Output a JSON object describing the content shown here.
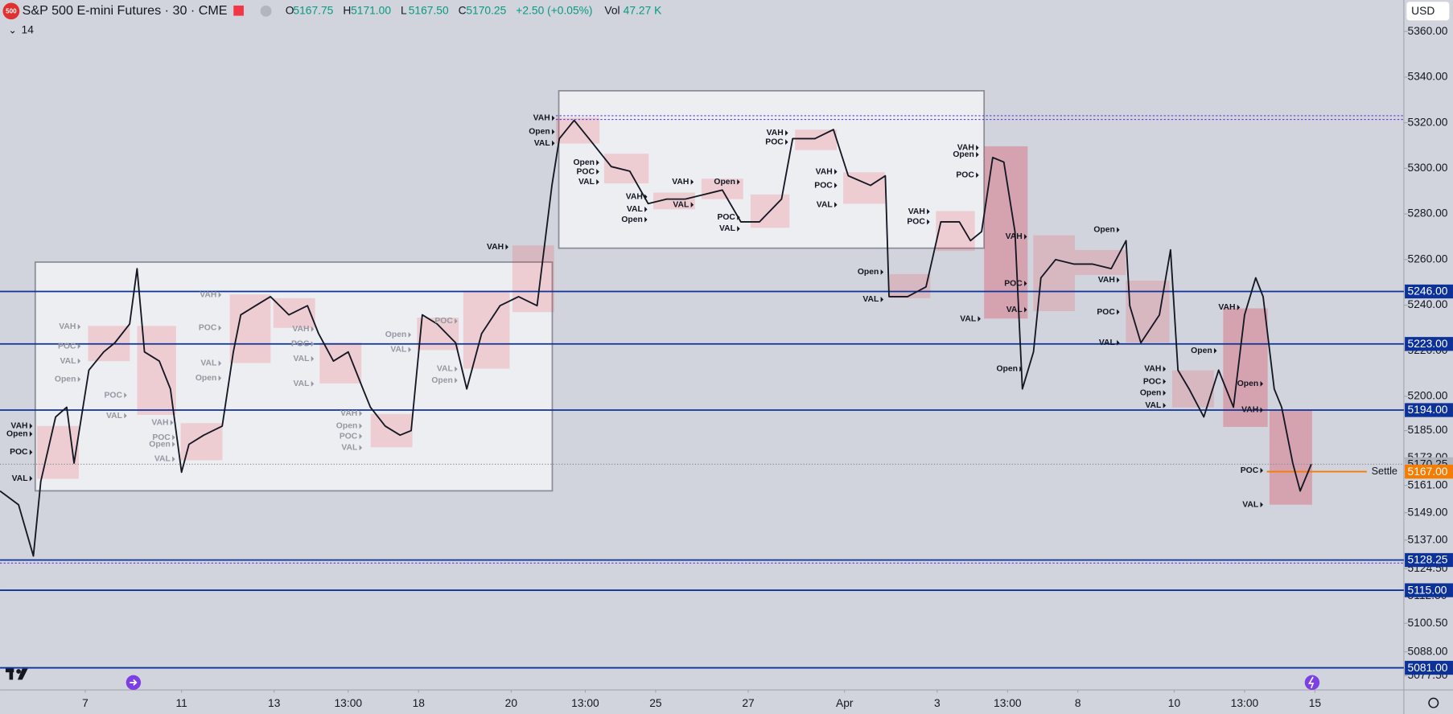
{
  "header": {
    "badge": "500",
    "symbol": "S&P 500 E-mini Futures · 30 · CME",
    "ohlc": [
      {
        "key": "O",
        "value": "5167.75"
      },
      {
        "key": "H",
        "value": "5171.00"
      },
      {
        "key": "L",
        "value": "5167.50"
      },
      {
        "key": "C",
        "value": "5170.25"
      }
    ],
    "change": "+2.50 (+0.05%)",
    "volume": {
      "key": "Vol",
      "value": "47.27 K"
    },
    "indicator": "14",
    "currency": "USD"
  },
  "chart_data": {
    "type": "line",
    "x": [
      0,
      5,
      9,
      11,
      15,
      18,
      20,
      24,
      28,
      31,
      35,
      37,
      39,
      43,
      46,
      49,
      51,
      55,
      60,
      63,
      65,
      69,
      73,
      78,
      83,
      86,
      90,
      94,
      98,
      100,
      104,
      108,
      111,
      114,
      118,
      123,
      126,
      130,
      135,
      140,
      145,
      149,
      151,
      155,
      159,
      165,
      170,
      175,
      180,
      185,
      190,
      195,
      200,
      205,
      211,
      214,
      220,
      225,
      229,
      235,
      239,
      240,
      245,
      250,
      254,
      259,
      262,
      265,
      268,
      271,
      274,
      276,
      279,
      281,
      285,
      290,
      295,
      300,
      304,
      305,
      308,
      313,
      316,
      318,
      321,
      325,
      329,
      333,
      336,
      339,
      341,
      344,
      346,
      349,
      351,
      354
    ],
    "series": [
      {
        "color": "#131722",
        "values": [
          5158.5,
          5152.5,
          5130,
          5162.75,
          5191,
          5195.25,
          5170.75,
          5211.5,
          5219.5,
          5223.5,
          5231.75,
          5256,
          5219.5,
          5215.5,
          5203.25,
          5166.75,
          5179,
          5183,
          5187,
          5219.5,
          5235.75,
          5239.75,
          5243.75,
          5235.75,
          5239.75,
          5227.5,
          5215.5,
          5219.5,
          5203.25,
          5195.25,
          5187,
          5183,
          5185,
          5235.75,
          5231.75,
          5223.5,
          5203.25,
          5227.5,
          5239.75,
          5243.75,
          5239.75,
          5292.5,
          5313,
          5321,
          5313,
          5300.75,
          5298.75,
          5284.5,
          5286.5,
          5286.5,
          5288.5,
          5290.5,
          5276.5,
          5276.5,
          5286.5,
          5313,
          5313,
          5317,
          5296.75,
          5292.5,
          5296.75,
          5243.75,
          5243.75,
          5248,
          5276.5,
          5276.5,
          5268.25,
          5272.25,
          5304.75,
          5302.75,
          5272.25,
          5203.25,
          5219.5,
          5252,
          5260,
          5258,
          5258,
          5256,
          5268.25,
          5239.75,
          5223.5,
          5235.75,
          5264.25,
          5211.5,
          5203.25,
          5191,
          5211.5,
          5195.25,
          5235.75,
          5252,
          5243.75,
          5203.25,
          5195.25,
          5170.75,
          5158.5,
          5170.25
        ]
      }
    ],
    "xlim": [
      0,
      379
    ],
    "ylim": [
      5071.3,
      5373.8
    ],
    "xticks": [
      {
        "value": 23,
        "label": "7"
      },
      {
        "value": 49,
        "label": "11"
      },
      {
        "value": 74,
        "label": "13"
      },
      {
        "value": 94,
        "label": "13:00"
      },
      {
        "value": 113,
        "label": "18"
      },
      {
        "value": 138,
        "label": "20"
      },
      {
        "value": 158,
        "label": "13:00"
      },
      {
        "value": 177,
        "label": "25"
      },
      {
        "value": 202,
        "label": "27"
      },
      {
        "value": 228,
        "label": "Apr"
      },
      {
        "value": 253,
        "label": "3"
      },
      {
        "value": 272,
        "label": "13:00"
      },
      {
        "value": 291,
        "label": "8"
      },
      {
        "value": 317,
        "label": "10"
      },
      {
        "value": 336,
        "label": "13:00"
      },
      {
        "value": 355,
        "label": "15"
      }
    ],
    "yticks": [
      {
        "value": 5360,
        "label": "5360.00"
      },
      {
        "value": 5340,
        "label": "5340.00"
      },
      {
        "value": 5320,
        "label": "5320.00"
      },
      {
        "value": 5300,
        "label": "5300.00"
      },
      {
        "value": 5280,
        "label": "5280.00"
      },
      {
        "value": 5260,
        "label": "5260.00"
      },
      {
        "value": 5240,
        "label": "5240.00"
      },
      {
        "value": 5220,
        "label": "5220.00"
      },
      {
        "value": 5200,
        "label": "5200.00"
      },
      {
        "value": 5185,
        "label": "5185.00"
      },
      {
        "value": 5173,
        "label": "5173.00"
      },
      {
        "value": 5161,
        "label": "5161.00"
      },
      {
        "value": 5149,
        "label": "5149.00"
      },
      {
        "value": 5137,
        "label": "5137.00"
      },
      {
        "value": 5124.5,
        "label": "5124.50"
      },
      {
        "value": 5112.5,
        "label": "5112.50"
      },
      {
        "value": 5100.5,
        "label": "5100.50"
      },
      {
        "value": 5088,
        "label": "5088.00"
      },
      {
        "value": 5077.5,
        "label": "5077.50"
      }
    ],
    "grid": false,
    "levels": [
      {
        "value": 5246,
        "label": "5246.00",
        "color": "#0c3299",
        "text_color": "#ffffff"
      },
      {
        "value": 5223,
        "label": "5223.00",
        "color": "#0c3299",
        "text_color": "#ffffff"
      },
      {
        "value": 5194,
        "label": "5194.00",
        "color": "#0c3299",
        "text_color": "#ffffff"
      },
      {
        "value": 5128.25,
        "label": "5128.25",
        "color": "#0c3299",
        "text_color": "#ffffff"
      },
      {
        "value": 5115,
        "label": "5115.00",
        "color": "#0c3299",
        "text_color": "#ffffff"
      },
      {
        "value": 5081,
        "label": "5081.00",
        "color": "#0c3299",
        "text_color": "#ffffff"
      },
      {
        "value": 5170.25,
        "label": "5170.25",
        "color": "#b2b5be",
        "text_color": "#131722",
        "dotted": true
      },
      {
        "value": 5167,
        "label": "5167.00",
        "color": "#f57c00",
        "text_color": "#ffffff",
        "name": "Settle",
        "x_start": 342
      }
    ],
    "annotations": [
      {
        "text": "VAH",
        "x": 150,
        "y": 5322
      },
      {
        "text": "Open",
        "x": 150,
        "y": 5316
      },
      {
        "text": "VAL",
        "x": 150,
        "y": 5311
      },
      {
        "text": "Open",
        "x": 162,
        "y": 5302.5
      },
      {
        "text": "POC",
        "x": 162,
        "y": 5298.5
      },
      {
        "text": "VAL",
        "x": 162,
        "y": 5294
      },
      {
        "text": "VAH",
        "x": 175,
        "y": 5287.5
      },
      {
        "text": "VAL",
        "x": 175,
        "y": 5282
      },
      {
        "text": "Open",
        "x": 175,
        "y": 5277.5
      },
      {
        "text": "VAH",
        "x": 187.5,
        "y": 5294
      },
      {
        "text": "VAL",
        "x": 187.5,
        "y": 5284
      },
      {
        "text": "Open",
        "x": 200,
        "y": 5294
      },
      {
        "text": "POC",
        "x": 200,
        "y": 5278.5
      },
      {
        "text": "VAL",
        "x": 200,
        "y": 5273.5
      },
      {
        "text": "VAH",
        "x": 213,
        "y": 5315.5
      },
      {
        "text": "POC",
        "x": 213,
        "y": 5311.5
      },
      {
        "text": "VAH",
        "x": 226.25,
        "y": 5298.5
      },
      {
        "text": "POC",
        "x": 226.25,
        "y": 5292.5
      },
      {
        "text": "VAL",
        "x": 226.25,
        "y": 5284
      },
      {
        "text": "VAH",
        "x": 264.5,
        "y": 5309
      },
      {
        "text": "Open",
        "x": 264.5,
        "y": 5306
      },
      {
        "text": "POC",
        "x": 264.5,
        "y": 5297
      },
      {
        "text": "VAH",
        "x": 251.25,
        "y": 5281
      },
      {
        "text": "POC",
        "x": 251.25,
        "y": 5276.5
      },
      {
        "text": "Open",
        "x": 238.75,
        "y": 5254.5
      },
      {
        "text": "VAL",
        "x": 238.75,
        "y": 5242.5
      },
      {
        "text": "VAL",
        "x": 265,
        "y": 5234
      },
      {
        "text": "VAH",
        "x": 277.5,
        "y": 5270
      },
      {
        "text": "POC",
        "x": 277.5,
        "y": 5249.5
      },
      {
        "text": "VAL",
        "x": 277.5,
        "y": 5238
      },
      {
        "text": "Open",
        "x": 276.25,
        "y": 5212
      },
      {
        "text": "Open",
        "x": 302.5,
        "y": 5273
      },
      {
        "text": "VAH",
        "x": 302.5,
        "y": 5251
      },
      {
        "text": "POC",
        "x": 302.5,
        "y": 5237
      },
      {
        "text": "VAL",
        "x": 302.5,
        "y": 5223.5
      },
      {
        "text": "VAH",
        "x": 315,
        "y": 5212
      },
      {
        "text": "POC",
        "x": 315,
        "y": 5206.5
      },
      {
        "text": "Open",
        "x": 315,
        "y": 5201.5
      },
      {
        "text": "VAL",
        "x": 315,
        "y": 5196
      },
      {
        "text": "VAH",
        "x": 335,
        "y": 5239
      },
      {
        "text": "Open",
        "x": 328.75,
        "y": 5220
      },
      {
        "text": "Open",
        "x": 341.25,
        "y": 5205.5
      },
      {
        "text": "VAH",
        "x": 341.25,
        "y": 5194
      },
      {
        "text": "POC",
        "x": 341.25,
        "y": 5167.5
      },
      {
        "text": "VAL",
        "x": 341.25,
        "y": 5152.5
      },
      {
        "text": "VAH",
        "x": 9,
        "y": 5187
      },
      {
        "text": "Open",
        "x": 9,
        "y": 5183.5
      },
      {
        "text": "POC",
        "x": 9,
        "y": 5175.5
      },
      {
        "text": "VAL",
        "x": 9,
        "y": 5164
      },
      {
        "text": "VAH",
        "x": 137.5,
        "y": 5265.5
      },
      {
        "text": "VAH",
        "x": 22,
        "y": 5230.5,
        "muted": true
      },
      {
        "text": "POC",
        "x": 22,
        "y": 5222,
        "muted": true
      },
      {
        "text": "VAL",
        "x": 22,
        "y": 5215.5,
        "muted": true
      },
      {
        "text": "Open",
        "x": 22,
        "y": 5207.5,
        "muted": true
      },
      {
        "text": "POC",
        "x": 34.5,
        "y": 5200.5,
        "muted": true
      },
      {
        "text": "VAL",
        "x": 34.5,
        "y": 5191.5,
        "muted": true
      },
      {
        "text": "VAH",
        "x": 60,
        "y": 5244.5,
        "muted": true
      },
      {
        "text": "POC",
        "x": 60,
        "y": 5230,
        "muted": true
      },
      {
        "text": "VAL",
        "x": 60,
        "y": 5214.5,
        "muted": true
      },
      {
        "text": "Open",
        "x": 60,
        "y": 5208,
        "muted": true
      },
      {
        "text": "VAH",
        "x": 85,
        "y": 5229.5,
        "muted": true
      },
      {
        "text": "POC",
        "x": 85,
        "y": 5223,
        "muted": true
      },
      {
        "text": "VAL",
        "x": 85,
        "y": 5216.5,
        "muted": true
      },
      {
        "text": "VAL",
        "x": 85,
        "y": 5205.5,
        "muted": true
      },
      {
        "text": "VAH",
        "x": 47,
        "y": 5188.5,
        "muted": true
      },
      {
        "text": "POC",
        "x": 47.5,
        "y": 5182,
        "muted": true
      },
      {
        "text": "Open",
        "x": 47.5,
        "y": 5179,
        "muted": true
      },
      {
        "text": "VAL",
        "x": 47.5,
        "y": 5172.5,
        "muted": true
      },
      {
        "text": "VAH",
        "x": 98,
        "y": 5192.5,
        "muted": true
      },
      {
        "text": "Open",
        "x": 98,
        "y": 5187,
        "muted": true
      },
      {
        "text": "POC",
        "x": 98,
        "y": 5182.5,
        "muted": true
      },
      {
        "text": "VAL",
        "x": 98,
        "y": 5177.5,
        "muted": true
      },
      {
        "text": "Open",
        "x": 111.25,
        "y": 5227,
        "muted": true
      },
      {
        "text": "VAL",
        "x": 111.25,
        "y": 5220.5,
        "muted": true
      },
      {
        "text": "POC",
        "x": 123.75,
        "y": 5233,
        "muted": true
      },
      {
        "text": "VAL",
        "x": 123.75,
        "y": 5212,
        "muted": true
      },
      {
        "text": "Open",
        "x": 123.75,
        "y": 5207,
        "muted": true
      }
    ]
  }
}
